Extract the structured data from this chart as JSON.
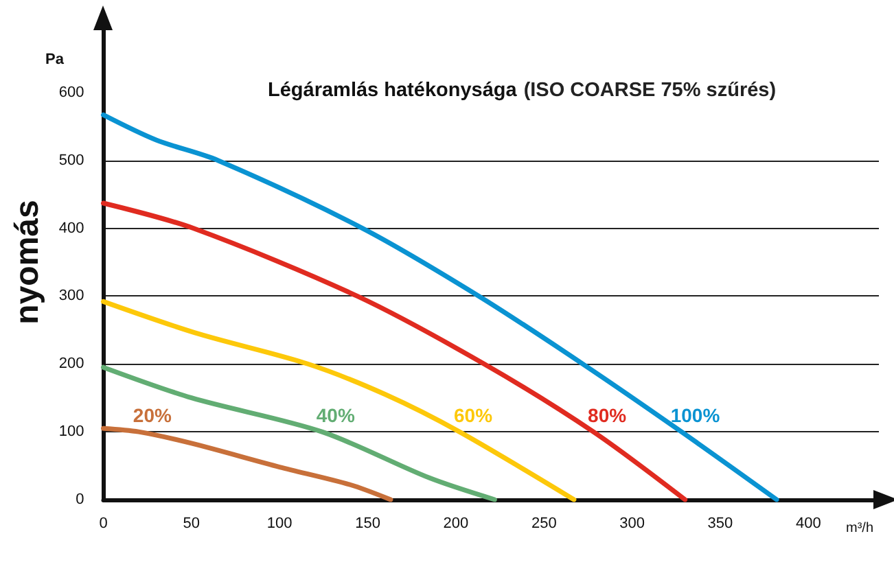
{
  "chart_data": {
    "type": "line",
    "title": "Légáramlás hatékonysága",
    "subtitle": "(ISO COARSE 75% szűrés)",
    "xlabel": "m³/h",
    "ylabel": "nyomás",
    "annotations": [
      "Pa"
    ],
    "xlim": [
      0,
      440
    ],
    "xticks": [
      0,
      50,
      100,
      150,
      200,
      250,
      300,
      350,
      400
    ],
    "ylim": [
      0,
      700
    ],
    "yticks": [
      0,
      100,
      200,
      300,
      400,
      500,
      600
    ],
    "grid": "y",
    "legend": false,
    "marker": "none",
    "line_style": "solid",
    "series": [
      {
        "name": "20%",
        "color": "#c8703a",
        "x": [
          0,
          20,
          50,
          100,
          140,
          163
        ],
        "values": [
          105,
          100,
          83,
          48,
          22,
          0
        ]
      },
      {
        "name": "40%",
        "color": "#62ad73",
        "x": [
          0,
          50,
          124,
          185,
          222
        ],
        "values": [
          195,
          150,
          100,
          32,
          0
        ]
      },
      {
        "name": "60%",
        "color": "#fdc80a",
        "x": [
          0,
          52,
          116,
          160,
          202,
          267
        ],
        "values": [
          292,
          246,
          200,
          155,
          100,
          0
        ]
      },
      {
        "name": "80%",
        "color": "#e02b20",
        "x": [
          0,
          51,
          144,
          216,
          278,
          330
        ],
        "values": [
          437,
          400,
          300,
          200,
          100,
          0
        ]
      },
      {
        "name": "100%",
        "color": "#0a93d2",
        "x": [
          0,
          30,
          65,
          147,
          213,
          272,
          328,
          382
        ],
        "values": [
          567,
          530,
          500,
          400,
          300,
          200,
          100,
          0
        ]
      }
    ]
  }
}
